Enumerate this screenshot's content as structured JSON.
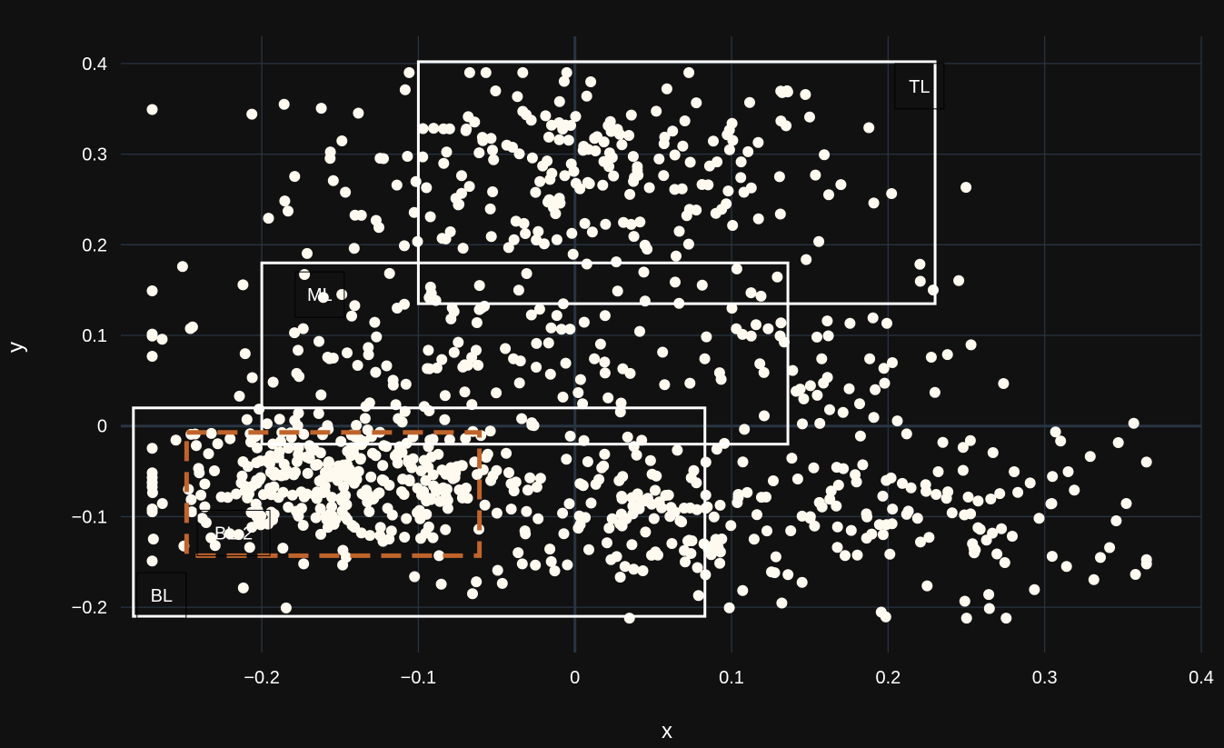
{
  "chart_data": {
    "type": "scatter",
    "title": "",
    "xlabel": "x",
    "ylabel": "y",
    "xlim": [
      -0.29,
      0.4
    ],
    "ylim": [
      -0.25,
      0.43
    ],
    "x_ticks": [
      -0.2,
      -0.1,
      0,
      0.1,
      0.2,
      0.3,
      0.4
    ],
    "x_tick_labels": [
      "−0.2",
      "−0.1",
      "0",
      "0.1",
      "0.2",
      "0.3",
      "0.4"
    ],
    "y_ticks": [
      -0.2,
      -0.1,
      0,
      0.1,
      0.2,
      0.3,
      0.4
    ],
    "y_tick_labels": [
      "−0.2",
      "−0.1",
      "0",
      "0.1",
      "0.2",
      "0.3",
      "0.4"
    ],
    "grid": true,
    "colors": {
      "background": "#111111",
      "grid": "#283442",
      "zeroline": "#283442",
      "points": "#fffaf0",
      "box": "#ffffff",
      "dashed_box": "#c0642c"
    },
    "point_count": 1000,
    "clusters": [
      {
        "center": [
          0.0,
          0.28
        ],
        "spread": [
          0.09,
          0.06
        ],
        "n": 230
      },
      {
        "center": [
          -0.15,
          -0.06
        ],
        "spread": [
          0.06,
          0.035
        ],
        "n": 330
      },
      {
        "center": [
          0.05,
          -0.1
        ],
        "spread": [
          0.08,
          0.045
        ],
        "n": 170
      },
      {
        "center": [
          -0.1,
          0.08
        ],
        "spread": [
          0.09,
          0.05
        ],
        "n": 120
      },
      {
        "center": [
          0.17,
          0.05
        ],
        "spread": [
          0.06,
          0.06
        ],
        "n": 60
      },
      {
        "center": [
          0.24,
          -0.1
        ],
        "spread": [
          0.07,
          0.05
        ],
        "n": 90
      }
    ],
    "boxes": [
      {
        "label": "TL",
        "x0": -0.1,
        "x1": 0.23,
        "y0": 0.135,
        "y1": 0.402,
        "style": "solid",
        "label_x": 0.22,
        "label_y": 0.375
      },
      {
        "label": "ML",
        "x0": -0.2,
        "x1": 0.136,
        "y0": -0.02,
        "y1": 0.18,
        "style": "solid",
        "label_x": -0.163,
        "label_y": 0.145
      },
      {
        "label": "BL",
        "x0": -0.282,
        "x1": 0.083,
        "y0": -0.21,
        "y1": 0.02,
        "style": "solid",
        "label_x": -0.264,
        "label_y": -0.187
      },
      {
        "label": "BL-2",
        "x0": -0.248,
        "x1": -0.061,
        "y0": -0.143,
        "y1": -0.007,
        "style": "dashed",
        "label_x": -0.218,
        "label_y": -0.118
      }
    ]
  }
}
